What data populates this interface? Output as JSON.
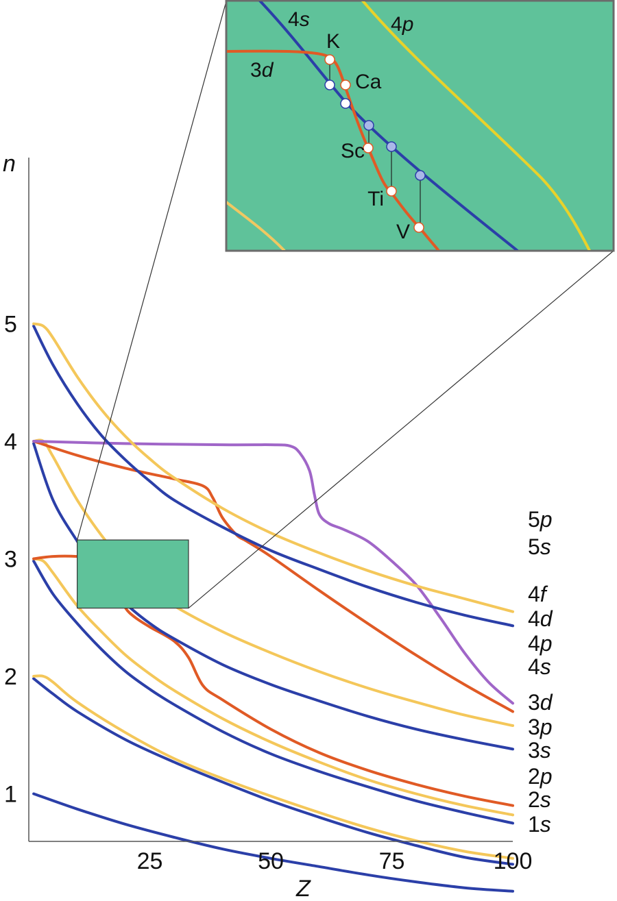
{
  "chart_data": {
    "type": "line",
    "xlabel": "Z",
    "ylabel": "n",
    "x_ticks": [
      "25",
      "50",
      "75",
      "100"
    ],
    "y_ticks": [
      "1",
      "2",
      "3",
      "4",
      "5"
    ],
    "xlim": [
      0,
      100
    ],
    "ylim": [
      0,
      5.5
    ],
    "grid": false,
    "colors": {
      "s": "#2b3fa8",
      "p": "#f4c75a",
      "d": "#e05a25",
      "f": "#a066c8",
      "inset_bg": "#5fc29a"
    },
    "series": [
      {
        "name": "1s",
        "labels": [
          "1",
          "s"
        ],
        "orbital": "s",
        "x": [
          1,
          10,
          20,
          30,
          40,
          50,
          60,
          70,
          80,
          90,
          100
        ],
        "y": [
          1.0,
          0.87,
          0.74,
          0.63,
          0.53,
          0.45,
          0.38,
          0.31,
          0.25,
          0.2,
          0.17
        ]
      },
      {
        "name": "2s",
        "labels": [
          "2",
          "s"
        ],
        "orbital": "s",
        "x": [
          1,
          5,
          10,
          20,
          30,
          40,
          50,
          60,
          70,
          80,
          90,
          100
        ],
        "y": [
          1.98,
          1.85,
          1.7,
          1.46,
          1.27,
          1.1,
          0.94,
          0.8,
          0.67,
          0.56,
          0.46,
          0.4
        ]
      },
      {
        "name": "2p",
        "labels": [
          "2",
          "p"
        ],
        "orbital": "p",
        "x": [
          1,
          3,
          5,
          10,
          20,
          30,
          40,
          50,
          60,
          70,
          80,
          90,
          100
        ],
        "y": [
          2.0,
          2.0,
          1.95,
          1.78,
          1.52,
          1.3,
          1.13,
          0.98,
          0.84,
          0.71,
          0.6,
          0.51,
          0.45
        ]
      },
      {
        "name": "3s",
        "labels": [
          "3",
          "s"
        ],
        "orbital": "s",
        "x": [
          1,
          5,
          10,
          15,
          20,
          25,
          30,
          40,
          50,
          60,
          70,
          80,
          90,
          100
        ],
        "y": [
          2.98,
          2.7,
          2.45,
          2.23,
          2.04,
          1.89,
          1.76,
          1.53,
          1.34,
          1.19,
          1.06,
          0.94,
          0.84,
          0.75
        ]
      },
      {
        "name": "3p",
        "labels": [
          "3",
          "p"
        ],
        "orbital": "p",
        "x": [
          1,
          3,
          5,
          10,
          15,
          20,
          25,
          30,
          40,
          50,
          60,
          70,
          80,
          90,
          100
        ],
        "y": [
          3.0,
          2.98,
          2.88,
          2.6,
          2.38,
          2.18,
          2.02,
          1.88,
          1.64,
          1.44,
          1.27,
          1.12,
          1.0,
          0.9,
          0.82
        ]
      },
      {
        "name": "3d",
        "labels": [
          "3",
          "d"
        ],
        "orbital": "d",
        "x": [
          1,
          5,
          10,
          15,
          18,
          19,
          20,
          22,
          25,
          30,
          33,
          36,
          40,
          50,
          60,
          70,
          80,
          90,
          100
        ],
        "y": [
          3.0,
          3.02,
          3.02,
          3.0,
          2.95,
          2.7,
          2.58,
          2.5,
          2.42,
          2.3,
          2.16,
          1.92,
          1.8,
          1.55,
          1.35,
          1.2,
          1.08,
          0.98,
          0.9
        ]
      },
      {
        "name": "4s",
        "labels": [
          "4",
          "s"
        ],
        "orbital": "s",
        "x": [
          1,
          5,
          10,
          15,
          20,
          25,
          30,
          40,
          50,
          60,
          70,
          80,
          90,
          100
        ],
        "y": [
          3.98,
          3.5,
          3.15,
          2.85,
          2.62,
          2.45,
          2.32,
          2.1,
          1.93,
          1.79,
          1.66,
          1.55,
          1.46,
          1.38
        ]
      },
      {
        "name": "4p",
        "labels": [
          "4",
          "p"
        ],
        "orbital": "p",
        "x": [
          1,
          3,
          5,
          10,
          15,
          20,
          25,
          30,
          40,
          50,
          60,
          70,
          80,
          90,
          100
        ],
        "y": [
          4.0,
          4.0,
          3.87,
          3.5,
          3.2,
          2.95,
          2.75,
          2.6,
          2.38,
          2.2,
          2.04,
          1.9,
          1.78,
          1.67,
          1.58
        ]
      },
      {
        "name": "4d",
        "labels": [
          "4",
          "d"
        ],
        "orbital": "d",
        "x": [
          1,
          10,
          20,
          30,
          36,
          38,
          40,
          43,
          45,
          50,
          60,
          70,
          80,
          90,
          100
        ],
        "y": [
          4.0,
          3.88,
          3.77,
          3.68,
          3.62,
          3.52,
          3.35,
          3.2,
          3.15,
          3.02,
          2.73,
          2.45,
          2.18,
          1.93,
          1.7
        ]
      },
      {
        "name": "4f",
        "labels": [
          "4",
          "f"
        ],
        "orbital": "f",
        "x": [
          1,
          20,
          40,
          50,
          54,
          56,
          58,
          59,
          60,
          62,
          65,
          70,
          75,
          80,
          85,
          90,
          95,
          100
        ],
        "y": [
          4.0,
          3.98,
          3.97,
          3.97,
          3.96,
          3.9,
          3.75,
          3.55,
          3.38,
          3.3,
          3.25,
          3.15,
          2.98,
          2.78,
          2.5,
          2.2,
          1.95,
          1.77
        ]
      },
      {
        "name": "5s",
        "labels": [
          "5",
          "s"
        ],
        "orbital": "s",
        "x": [
          1,
          5,
          10,
          15,
          20,
          25,
          30,
          40,
          50,
          60,
          70,
          80,
          90,
          100
        ],
        "y": [
          4.98,
          4.65,
          4.32,
          4.05,
          3.84,
          3.66,
          3.5,
          3.27,
          3.07,
          2.91,
          2.76,
          2.63,
          2.52,
          2.43
        ]
      },
      {
        "name": "5p",
        "labels": [
          "5",
          "p"
        ],
        "orbital": "p",
        "x": [
          1,
          3,
          5,
          10,
          15,
          20,
          25,
          30,
          40,
          50,
          60,
          70,
          80,
          90,
          100
        ],
        "y": [
          5.0,
          4.98,
          4.88,
          4.55,
          4.27,
          4.04,
          3.85,
          3.69,
          3.43,
          3.22,
          3.05,
          2.9,
          2.77,
          2.66,
          2.55
        ]
      }
    ],
    "zoom_box": {
      "x": [
        10,
        33
      ],
      "y": [
        2.58,
        3.16
      ]
    },
    "inset": {
      "curve_labels": [
        {
          "id": "4s",
          "labels": [
            "4",
            "s"
          ]
        },
        {
          "id": "4p",
          "labels": [
            "4",
            "p"
          ]
        },
        {
          "id": "3d",
          "labels": [
            "3",
            "d"
          ]
        }
      ],
      "elements": [
        "K",
        "Ca",
        "Sc",
        "Ti",
        "V"
      ]
    }
  }
}
